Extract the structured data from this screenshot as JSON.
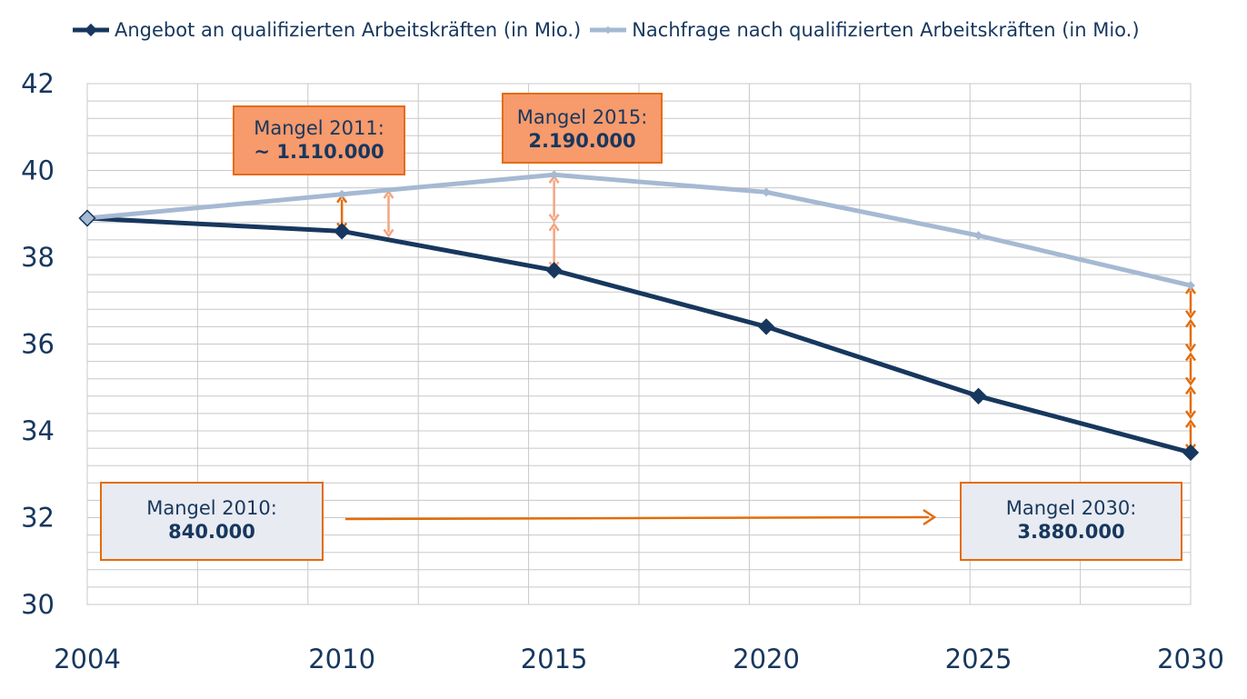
{
  "chart_data": {
    "type": "line",
    "x": [
      2004,
      2010,
      2015,
      2020,
      2025,
      2030
    ],
    "series": [
      {
        "name": "Angebot an qualifizierten Arbeitskräften (in Mio.)",
        "color": "#17375e",
        "values": [
          38.9,
          38.6,
          37.7,
          36.4,
          34.8,
          33.5
        ]
      },
      {
        "name": "Nachfrage nach qualifizierten Arbeitskräften (in Mio.)",
        "color": "#a6b9d3",
        "values": [
          38.9,
          39.45,
          39.9,
          39.5,
          38.5,
          37.35
        ]
      }
    ],
    "ylim": [
      30,
      42
    ],
    "yticks": [
      "30",
      "32",
      "34",
      "36",
      "38",
      "40",
      "42"
    ],
    "xticks": [
      "2004",
      "2010",
      "2015",
      "2020",
      "2025",
      "2030"
    ],
    "grid": true,
    "legend_position": "top",
    "annotations": [
      {
        "id": "m2011",
        "label": "Mangel 2011:",
        "value": "~ 1.110.000",
        "style": "orange"
      },
      {
        "id": "m2015",
        "label": "Mangel 2015:",
        "value": "2.190.000",
        "style": "orange"
      },
      {
        "id": "m2010",
        "label": "Mangel 2010:",
        "value": "840.000",
        "style": "gray"
      },
      {
        "id": "m2030",
        "label": "Mangel 2030:",
        "value": "3.880.000",
        "style": "gray"
      }
    ]
  }
}
